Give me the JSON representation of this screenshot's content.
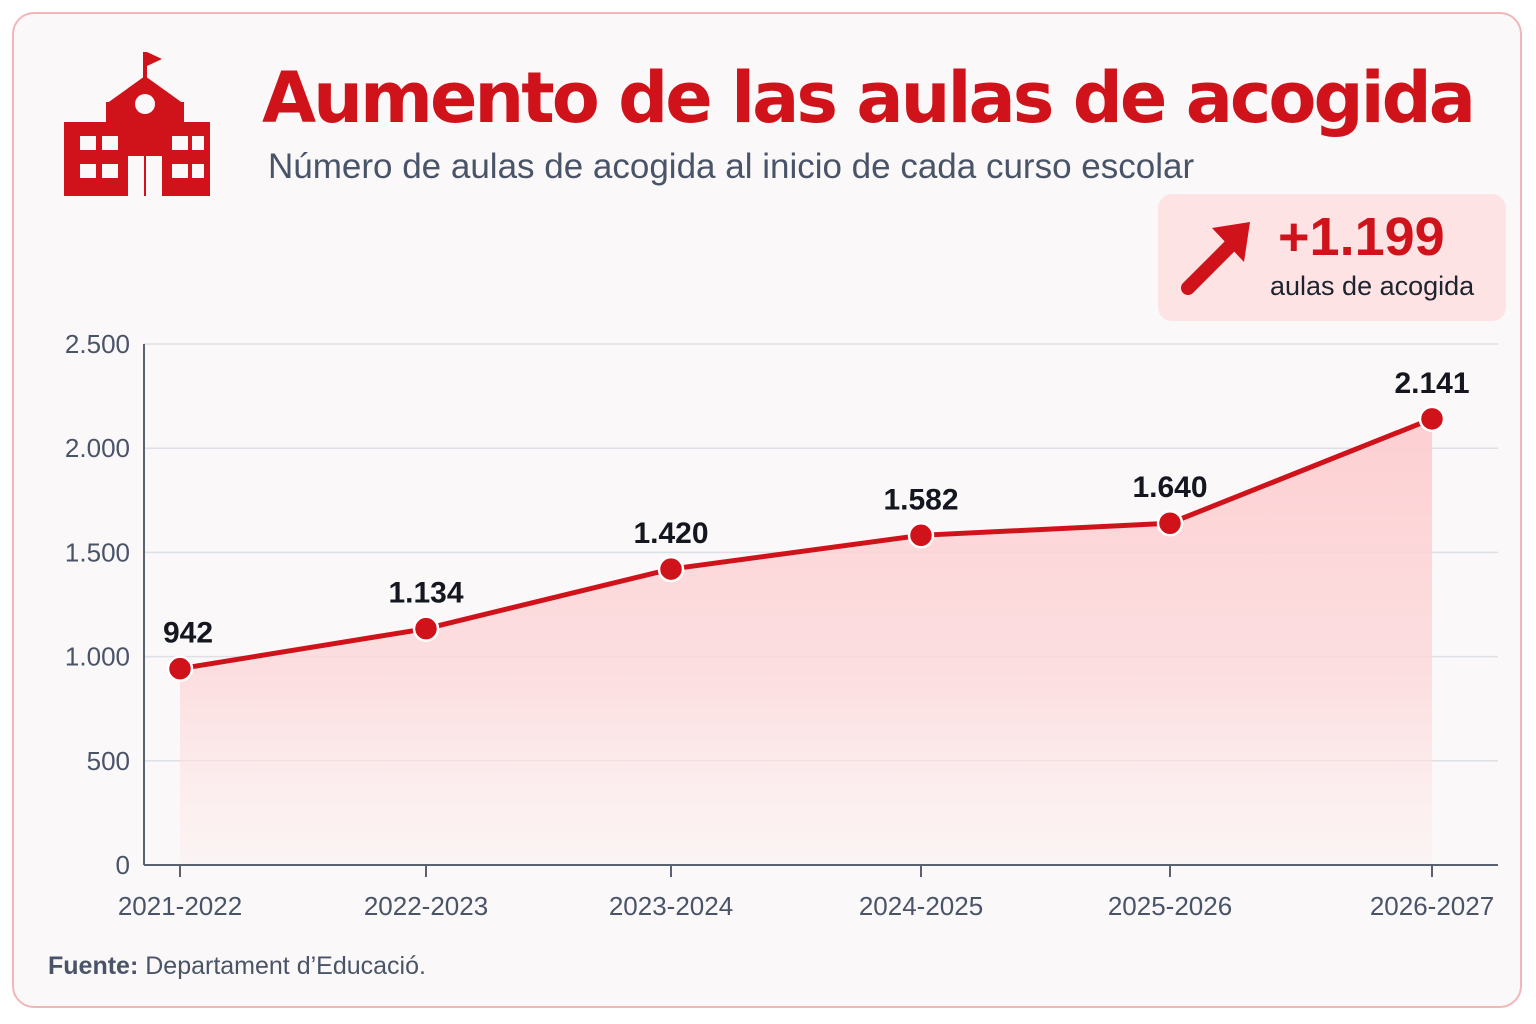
{
  "header": {
    "title": "Aumento de las aulas de acogida",
    "subtitle": "Número de aulas de acogida al inicio de cada curso escolar",
    "logo_icon": "school-building-icon"
  },
  "callout": {
    "value": "+1.199",
    "label": "aulas de acogida",
    "icon": "arrow-up-right-icon"
  },
  "colors": {
    "accent": "#d0121b",
    "area_fill": "#fdd5d7",
    "grid": "#dde0e6",
    "axis_text": "#4a5468"
  },
  "chart_data": {
    "type": "area",
    "categories": [
      "2021-2022",
      "2022-2023",
      "2023-2024",
      "2024-2025",
      "2025-2026",
      "2026-2027"
    ],
    "values": [
      942,
      1134,
      1420,
      1582,
      1640,
      2141
    ],
    "data_labels": [
      "942",
      "1.134",
      "1.420",
      "1.582",
      "1.640",
      "2.141"
    ],
    "ylim": [
      0,
      2500
    ],
    "yticks": [
      0,
      500,
      1000,
      1500,
      2000,
      2500
    ],
    "ytick_labels": [
      "0",
      "500",
      "1.000",
      "1.500",
      "2.000",
      "2.500"
    ],
    "grid": true,
    "markers": true
  },
  "source": {
    "label": "Fuente:",
    "text": "Departament d’Educació."
  }
}
